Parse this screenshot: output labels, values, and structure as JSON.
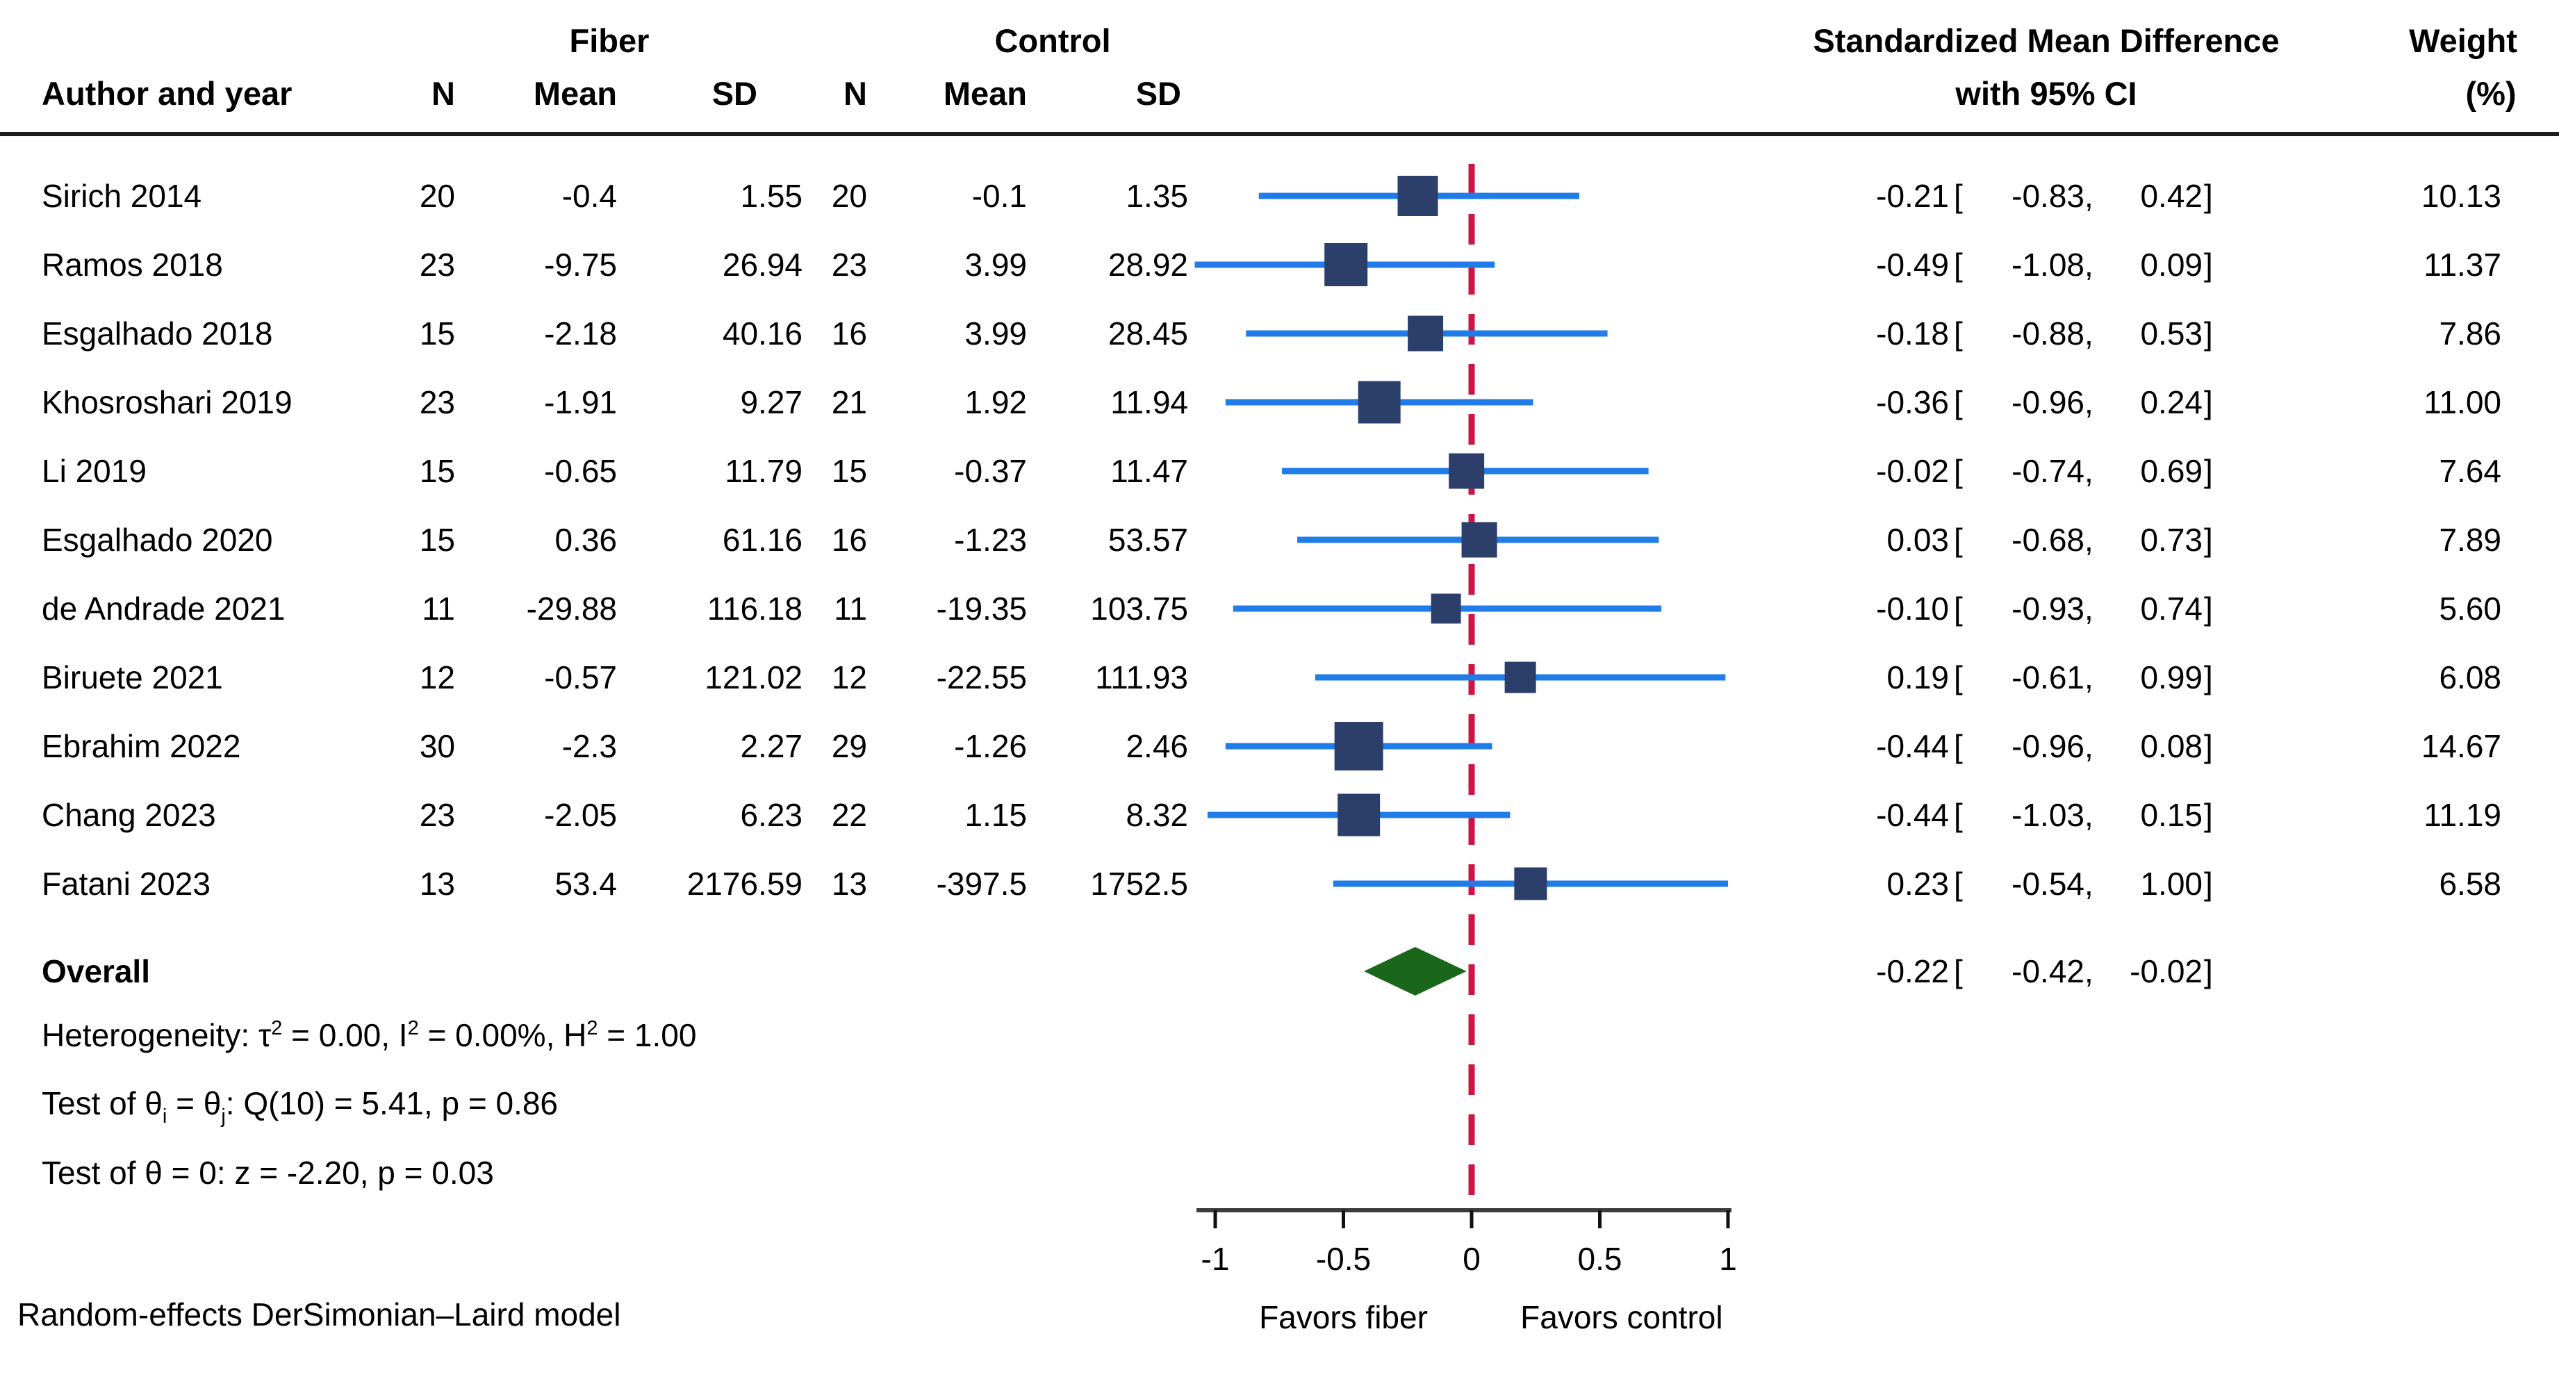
{
  "chart_data": {
    "type": "forest",
    "headers": {
      "author": "Author and year",
      "fiber_group": "Fiber",
      "control_group": "Control",
      "n": "N",
      "mean": "Mean",
      "sd": "SD",
      "smd_line1": "Standardized Mean Difference",
      "smd_line2": "with 95% CI",
      "weight_line1": "Weight",
      "weight_line2": "(%)"
    },
    "studies": [
      {
        "author": "Sirich 2014",
        "n1": "20",
        "mean1": "-0.4",
        "sd1": "1.55",
        "n2": "20",
        "mean2": "-0.1",
        "sd2": "1.35",
        "est": -0.21,
        "lo": -0.83,
        "hi": 0.42,
        "est_s": "-0.21",
        "lo_s": "-0.83",
        "hi_s": "0.42",
        "weight": 10.13,
        "weight_s": "10.13"
      },
      {
        "author": "Ramos 2018",
        "n1": "23",
        "mean1": "-9.75",
        "sd1": "26.94",
        "n2": "23",
        "mean2": "3.99",
        "sd2": "28.92",
        "est": -0.49,
        "lo": -1.08,
        "hi": 0.09,
        "est_s": "-0.49",
        "lo_s": "-1.08",
        "hi_s": "0.09",
        "weight": 11.37,
        "weight_s": "11.37"
      },
      {
        "author": "Esgalhado 2018",
        "n1": "15",
        "mean1": "-2.18",
        "sd1": "40.16",
        "n2": "16",
        "mean2": "3.99",
        "sd2": "28.45",
        "est": -0.18,
        "lo": -0.88,
        "hi": 0.53,
        "est_s": "-0.18",
        "lo_s": "-0.88",
        "hi_s": "0.53",
        "weight": 7.86,
        "weight_s": "7.86"
      },
      {
        "author": "Khosroshari 2019",
        "n1": "23",
        "mean1": "-1.91",
        "sd1": "9.27",
        "n2": "21",
        "mean2": "1.92",
        "sd2": "11.94",
        "est": -0.36,
        "lo": -0.96,
        "hi": 0.24,
        "est_s": "-0.36",
        "lo_s": "-0.96",
        "hi_s": "0.24",
        "weight": 11.0,
        "weight_s": "11.00"
      },
      {
        "author": "Li 2019",
        "n1": "15",
        "mean1": "-0.65",
        "sd1": "11.79",
        "n2": "15",
        "mean2": "-0.37",
        "sd2": "11.47",
        "est": -0.02,
        "lo": -0.74,
        "hi": 0.69,
        "est_s": "-0.02",
        "lo_s": "-0.74",
        "hi_s": "0.69",
        "weight": 7.64,
        "weight_s": "7.64"
      },
      {
        "author": "Esgalhado 2020",
        "n1": "15",
        "mean1": "0.36",
        "sd1": "61.16",
        "n2": "16",
        "mean2": "-1.23",
        "sd2": "53.57",
        "est": 0.03,
        "lo": -0.68,
        "hi": 0.73,
        "est_s": "0.03",
        "lo_s": "-0.68",
        "hi_s": "0.73",
        "weight": 7.89,
        "weight_s": "7.89"
      },
      {
        "author": "de Andrade 2021",
        "n1": "11",
        "mean1": "-29.88",
        "sd1": "116.18",
        "n2": "11",
        "mean2": "-19.35",
        "sd2": "103.75",
        "est": -0.1,
        "lo": -0.93,
        "hi": 0.74,
        "est_s": "-0.10",
        "lo_s": "-0.93",
        "hi_s": "0.74",
        "weight": 5.6,
        "weight_s": "5.60"
      },
      {
        "author": "Biruete 2021",
        "n1": "12",
        "mean1": "-0.57",
        "sd1": "121.02",
        "n2": "12",
        "mean2": "-22.55",
        "sd2": "111.93",
        "est": 0.19,
        "lo": -0.61,
        "hi": 0.99,
        "est_s": "0.19",
        "lo_s": "-0.61",
        "hi_s": "0.99",
        "weight": 6.08,
        "weight_s": "6.08"
      },
      {
        "author": "Ebrahim 2022",
        "n1": "30",
        "mean1": "-2.3",
        "sd1": "2.27",
        "n2": "29",
        "mean2": "-1.26",
        "sd2": "2.46",
        "est": -0.44,
        "lo": -0.96,
        "hi": 0.08,
        "est_s": "-0.44",
        "lo_s": "-0.96",
        "hi_s": "0.08",
        "weight": 14.67,
        "weight_s": "14.67"
      },
      {
        "author": "Chang 2023",
        "n1": "23",
        "mean1": "-2.05",
        "sd1": "6.23",
        "n2": "22",
        "mean2": "1.15",
        "sd2": "8.32",
        "est": -0.44,
        "lo": -1.03,
        "hi": 0.15,
        "est_s": "-0.44",
        "lo_s": "-1.03",
        "hi_s": "0.15",
        "weight": 11.19,
        "weight_s": "11.19"
      },
      {
        "author": "Fatani 2023",
        "n1": "13",
        "mean1": "53.4",
        "sd1": "2176.59",
        "n2": "13",
        "mean2": "-397.5",
        "sd2": "1752.5",
        "est": 0.23,
        "lo": -0.54,
        "hi": 1.0,
        "est_s": "0.23",
        "lo_s": "-0.54",
        "hi_s": "1.00",
        "weight": 6.58,
        "weight_s": "6.58"
      }
    ],
    "overall": {
      "label": "Overall",
      "est": -0.22,
      "lo": -0.42,
      "hi": -0.02,
      "est_s": "-0.22",
      "lo_s": "-0.42",
      "hi_s": "-0.02"
    },
    "stats": [
      {
        "segments": [
          {
            "k": "t",
            "s": "Heterogeneity: τ"
          },
          {
            "k": "sup",
            "s": "2"
          },
          {
            "k": "t",
            "s": " = 0.00, I"
          },
          {
            "k": "sup",
            "s": "2"
          },
          {
            "k": "t",
            "s": " = 0.00%, H"
          },
          {
            "k": "sup",
            "s": "2"
          },
          {
            "k": "t",
            "s": " = 1.00"
          }
        ]
      },
      {
        "segments": [
          {
            "k": "t",
            "s": "Test of θ"
          },
          {
            "k": "sub",
            "s": "i"
          },
          {
            "k": "t",
            "s": " = θ"
          },
          {
            "k": "sub",
            "s": "j"
          },
          {
            "k": "t",
            "s": ": Q(10) = 5.41, p = 0.86"
          }
        ]
      },
      {
        "segments": [
          {
            "k": "t",
            "s": "Test of θ = 0: z = -2.20, p = 0.03"
          }
        ]
      }
    ],
    "axis": {
      "xmin": -1,
      "xmax": 1,
      "ticks": [
        {
          "v": -1,
          "label": "-1"
        },
        {
          "v": -0.5,
          "label": "-0.5"
        },
        {
          "v": 0,
          "label": "0"
        },
        {
          "v": 0.5,
          "label": "0.5"
        },
        {
          "v": 1,
          "label": "1"
        }
      ],
      "zero_line": 0
    },
    "favors": {
      "left": "Favors fiber",
      "right": "Favors control"
    },
    "footer": "Random-effects DerSimonian–Laird model",
    "colors": {
      "marker": "#2c3f6b",
      "ci_line": "#1f7ce8",
      "zero_line": "#cf1443",
      "diamond": "#1a661a",
      "axis": "#3c3c3c",
      "text": "#000000",
      "rule": "#1c1c1c"
    }
  }
}
